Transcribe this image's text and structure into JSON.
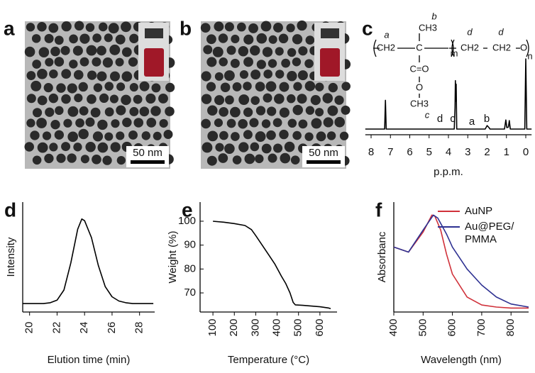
{
  "panels": [
    {
      "label": "a",
      "scale_bar": "50 nm"
    },
    {
      "label": "b",
      "scale_bar": "50 nm"
    }
  ],
  "structure": [
    "a",
    "CH3",
    "b",
    "CH2",
    "C",
    "m",
    "C=O",
    "O",
    "CH3",
    "c",
    "d",
    "d",
    "CH2",
    "CH2",
    "O",
    "n"
  ],
  "chart_data": [
    {
      "type": "line",
      "label": "c",
      "x_label": "p.p.m.",
      "color": "#000000",
      "x": [
        8.3,
        7.3,
        7.26,
        7.22,
        3.7,
        3.66,
        3.64,
        3.62,
        3.6,
        3.57,
        2.1,
        2.0,
        1.9,
        1.85,
        1.1,
        1.03,
        0.98,
        0.9,
        0.85,
        0.8,
        0.05,
        0.0,
        -0.05,
        -0.3
      ],
      "values": [
        0,
        0,
        0.41,
        0,
        0,
        0.3,
        0.69,
        0.4,
        0.64,
        0,
        0,
        0.05,
        0.02,
        0,
        0,
        0.13,
        0.02,
        0.03,
        0.12,
        0,
        0,
        1.0,
        0,
        0
      ],
      "annotations": [
        "d",
        "c",
        "a",
        "b"
      ],
      "xlim": [
        8.3,
        -0.3
      ],
      "xticks": [
        8,
        7,
        6,
        5,
        4,
        3,
        2,
        1,
        0
      ],
      "ylim": [
        -0.03,
        1.0
      ]
    },
    {
      "type": "line",
      "label": "d",
      "x_label": "Elution time (min)",
      "y_label": "Intensity",
      "color": "#000000",
      "x": [
        19.5,
        20,
        20.5,
        21,
        21.5,
        22,
        22.5,
        23,
        23.5,
        23.8,
        24,
        24.5,
        25,
        25.5,
        26,
        26.5,
        27,
        27.5,
        28,
        29
      ],
      "values": [
        0,
        0,
        0,
        0,
        0.01,
        0.04,
        0.16,
        0.48,
        0.88,
        1.0,
        0.98,
        0.78,
        0.45,
        0.2,
        0.08,
        0.03,
        0.01,
        0,
        0,
        0
      ],
      "xlim": [
        19.5,
        29.1
      ],
      "xticks": [
        20,
        22,
        24,
        26,
        28
      ],
      "ylim": [
        -0.1,
        1.2
      ]
    },
    {
      "type": "line",
      "label": "e",
      "x_label": "Temperature (°C)",
      "y_label": "Weight (%)",
      "color": "#000000",
      "x": [
        100,
        150,
        200,
        250,
        280,
        300,
        330,
        360,
        390,
        420,
        440,
        460,
        475,
        485,
        520,
        560,
        600,
        640,
        650
      ],
      "values": [
        100,
        99.6,
        99,
        98.2,
        96.5,
        94,
        90,
        86,
        82,
        77,
        74,
        70,
        66,
        65,
        64.8,
        64.5,
        64.2,
        63.7,
        63.4
      ],
      "xlim": [
        40,
        680
      ],
      "xticks": [
        100,
        200,
        300,
        400,
        500,
        600
      ],
      "ylim": [
        62,
        108
      ],
      "yticks": [
        70,
        80,
        90,
        100
      ]
    },
    {
      "type": "line",
      "label": "f",
      "x_label": "Wavelength (nm)",
      "y_label": "Absorbanc",
      "xlim": [
        400,
        860
      ],
      "xticks": [
        400,
        500,
        600,
        700,
        800
      ],
      "ylim": [
        0,
        1.1
      ],
      "legend": "top-right",
      "series": [
        {
          "name": "AuNP",
          "color": "#d0313a",
          "x": [
            400,
            450,
            500,
            530,
            540,
            560,
            580,
            600,
            650,
            700,
            750,
            800,
            860
          ],
          "values": [
            0.65,
            0.6,
            0.8,
            0.97,
            0.96,
            0.82,
            0.58,
            0.38,
            0.15,
            0.07,
            0.05,
            0.04,
            0.04
          ]
        },
        {
          "name": "Au@PEG/PMMA",
          "color": "#2e3192",
          "x": [
            400,
            450,
            500,
            535,
            550,
            580,
            600,
            650,
            700,
            750,
            800,
            860
          ],
          "values": [
            0.65,
            0.6,
            0.82,
            0.97,
            0.94,
            0.78,
            0.65,
            0.43,
            0.27,
            0.15,
            0.08,
            0.05
          ]
        }
      ]
    }
  ]
}
